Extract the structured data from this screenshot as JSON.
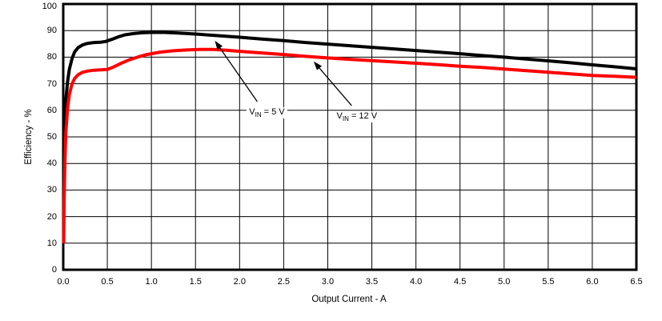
{
  "chart_data": {
    "type": "line",
    "title": "",
    "xlabel": "Output Current - A",
    "ylabel": "Efficiency - %",
    "xlim": [
      0,
      6.5
    ],
    "ylim": [
      0,
      100
    ],
    "xticks": [
      "0.0",
      "0.5",
      "1.0",
      "1.5",
      "2.0",
      "2.5",
      "3.0",
      "3.5",
      "4.0",
      "4.5",
      "5.0",
      "5.5",
      "6.0",
      "6.5"
    ],
    "yticks": [
      "0",
      "10",
      "20",
      "30",
      "40",
      "50",
      "60",
      "70",
      "80",
      "90",
      "100"
    ],
    "grid": true,
    "legend_position": "none",
    "frame_color": "#000000",
    "grid_color": "#000000",
    "series": [
      {
        "name": "VIN = 5 V",
        "color": "#000000",
        "points": [
          [
            0.005,
            28
          ],
          [
            0.01,
            44
          ],
          [
            0.02,
            57
          ],
          [
            0.03,
            64
          ],
          [
            0.05,
            71
          ],
          [
            0.07,
            75.5
          ],
          [
            0.1,
            79.5
          ],
          [
            0.13,
            82
          ],
          [
            0.17,
            83.6
          ],
          [
            0.22,
            84.6
          ],
          [
            0.28,
            85.2
          ],
          [
            0.35,
            85.5
          ],
          [
            0.42,
            85.6
          ],
          [
            0.48,
            85.9
          ],
          [
            0.55,
            86.7
          ],
          [
            0.62,
            87.6
          ],
          [
            0.7,
            88.4
          ],
          [
            0.8,
            88.9
          ],
          [
            0.9,
            89.2
          ],
          [
            1.0,
            89.3
          ],
          [
            1.15,
            89.3
          ],
          [
            1.3,
            89.1
          ],
          [
            1.5,
            88.7
          ],
          [
            1.75,
            88.1
          ],
          [
            2.0,
            87.5
          ],
          [
            2.25,
            86.8
          ],
          [
            2.5,
            86.2
          ],
          [
            2.75,
            85.5
          ],
          [
            3.0,
            84.9
          ],
          [
            3.25,
            84.3
          ],
          [
            3.5,
            83.7
          ],
          [
            3.75,
            83.1
          ],
          [
            4.0,
            82.5
          ],
          [
            4.25,
            81.9
          ],
          [
            4.5,
            81.3
          ],
          [
            4.75,
            80.6
          ],
          [
            5.0,
            80.0
          ],
          [
            5.25,
            79.3
          ],
          [
            5.5,
            78.6
          ],
          [
            5.75,
            77.9
          ],
          [
            6.0,
            77.1
          ],
          [
            6.25,
            76.4
          ],
          [
            6.5,
            75.6
          ]
        ]
      },
      {
        "name": "VIN = 12 V",
        "color": "#ff0000",
        "points": [
          [
            0.005,
            10
          ],
          [
            0.01,
            26
          ],
          [
            0.02,
            42
          ],
          [
            0.03,
            52
          ],
          [
            0.05,
            61
          ],
          [
            0.07,
            66
          ],
          [
            0.1,
            70
          ],
          [
            0.13,
            72
          ],
          [
            0.17,
            73.4
          ],
          [
            0.22,
            74.3
          ],
          [
            0.28,
            74.8
          ],
          [
            0.35,
            75.1
          ],
          [
            0.42,
            75.2
          ],
          [
            0.5,
            75.4
          ],
          [
            0.57,
            76.3
          ],
          [
            0.65,
            77.6
          ],
          [
            0.75,
            79.0
          ],
          [
            0.85,
            80.1
          ],
          [
            0.95,
            81.0
          ],
          [
            1.1,
            81.9
          ],
          [
            1.25,
            82.4
          ],
          [
            1.4,
            82.7
          ],
          [
            1.55,
            82.9
          ],
          [
            1.7,
            82.9
          ],
          [
            1.85,
            82.6
          ],
          [
            2.0,
            82.2
          ],
          [
            2.25,
            81.6
          ],
          [
            2.5,
            81.0
          ],
          [
            2.75,
            80.3
          ],
          [
            3.0,
            79.7
          ],
          [
            3.25,
            79.2
          ],
          [
            3.5,
            78.7
          ],
          [
            3.75,
            78.2
          ],
          [
            4.0,
            77.7
          ],
          [
            4.25,
            77.2
          ],
          [
            4.5,
            76.6
          ],
          [
            4.75,
            76.1
          ],
          [
            5.0,
            75.5
          ],
          [
            5.25,
            74.9
          ],
          [
            5.5,
            74.3
          ],
          [
            5.75,
            73.7
          ],
          [
            6.0,
            73.1
          ],
          [
            6.25,
            72.8
          ],
          [
            6.5,
            72.4
          ]
        ]
      }
    ],
    "annotations": [
      {
        "label_pre": "V",
        "label_sub": "IN",
        "label_post": " = 5 V",
        "label_x": 2.31,
        "label_y": 59.0,
        "arrow_tail_x": 2.2,
        "arrow_tail_y": 63.3,
        "arrow_tip_x": 1.72,
        "arrow_tip_y": 86.2
      },
      {
        "label_pre": "V",
        "label_sub": "IN",
        "label_post": " = 12 V",
        "label_x": 3.33,
        "label_y": 57.5,
        "arrow_tail_x": 3.27,
        "arrow_tail_y": 61.8,
        "arrow_tip_x": 2.84,
        "arrow_tip_y": 78.4
      }
    ]
  }
}
